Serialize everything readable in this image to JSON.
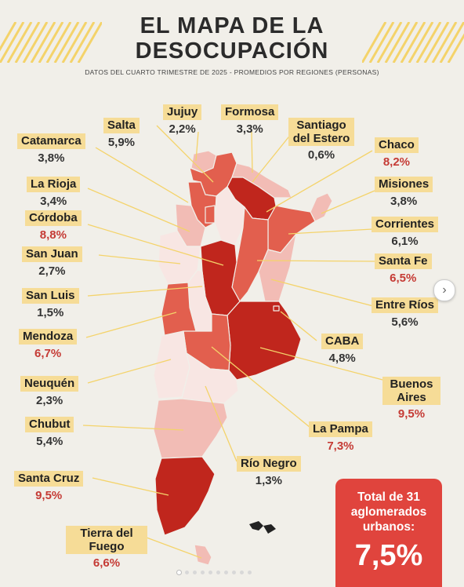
{
  "title_line1": "EL MAPA DE LA",
  "title_line2": "DESOCUPACIÓN",
  "subtitle": "DATOS DEL CUARTO TRIMESTRE DE 2025 - PROMEDIOS POR REGIONES (PERSONAS)",
  "colors": {
    "accent_stripe": "#f4d36a",
    "label_bg": "#f6dc97",
    "high_value": "#c53b35",
    "total_box": "#e0443d",
    "region_dark": "#c0261d",
    "region_mid": "#e25f4e",
    "region_light": "#f2bcb5",
    "region_pale": "#f8e6e3"
  },
  "regions": {
    "jujuy": {
      "name": "Jujuy",
      "value": "2,2%"
    },
    "formosa": {
      "name": "Formosa",
      "value": "3,3%"
    },
    "salta": {
      "name": "Salta",
      "value": "5,9%"
    },
    "santiago": {
      "name": "Santiago del Estero",
      "value": "0,6%"
    },
    "catamarca": {
      "name": "Catamarca",
      "value": "3,8%"
    },
    "chaco": {
      "name": "Chaco",
      "value": "8,2%"
    },
    "la_rioja": {
      "name": "La Rioja",
      "value": "3,4%"
    },
    "misiones": {
      "name": "Misiones",
      "value": "3,8%"
    },
    "cordoba": {
      "name": "Córdoba",
      "value": "8,8%"
    },
    "corrientes": {
      "name": "Corrientes",
      "value": "6,1%"
    },
    "san_juan": {
      "name": "San Juan",
      "value": "2,7%"
    },
    "santa_fe": {
      "name": "Santa Fe",
      "value": "6,5%"
    },
    "san_luis": {
      "name": "San Luis",
      "value": "1,5%"
    },
    "entre_rios": {
      "name": "Entre Ríos",
      "value": "5,6%"
    },
    "mendoza": {
      "name": "Mendoza",
      "value": "6,7%"
    },
    "caba": {
      "name": "CABA",
      "value": "4,8%"
    },
    "neuquen": {
      "name": "Neuquén",
      "value": "2,3%"
    },
    "buenos_aires": {
      "name": "Buenos Aires",
      "value": "9,5%"
    },
    "chubut": {
      "name": "Chubut",
      "value": "5,4%"
    },
    "la_pampa": {
      "name": "La Pampa",
      "value": "7,3%"
    },
    "rio_negro": {
      "name": "Río Negro",
      "value": "1,3%"
    },
    "santa_cruz": {
      "name": "Santa Cruz",
      "value": "9,5%"
    },
    "tierra_fuego": {
      "name": "Tierra del Fuego",
      "value": "6,6%"
    }
  },
  "total": {
    "label": "Total de 31 aglomerados urbanos:",
    "value": "7,5%"
  },
  "carousel": {
    "next_icon": "chevron-right-icon",
    "page_count": 10,
    "active_page": 1
  }
}
